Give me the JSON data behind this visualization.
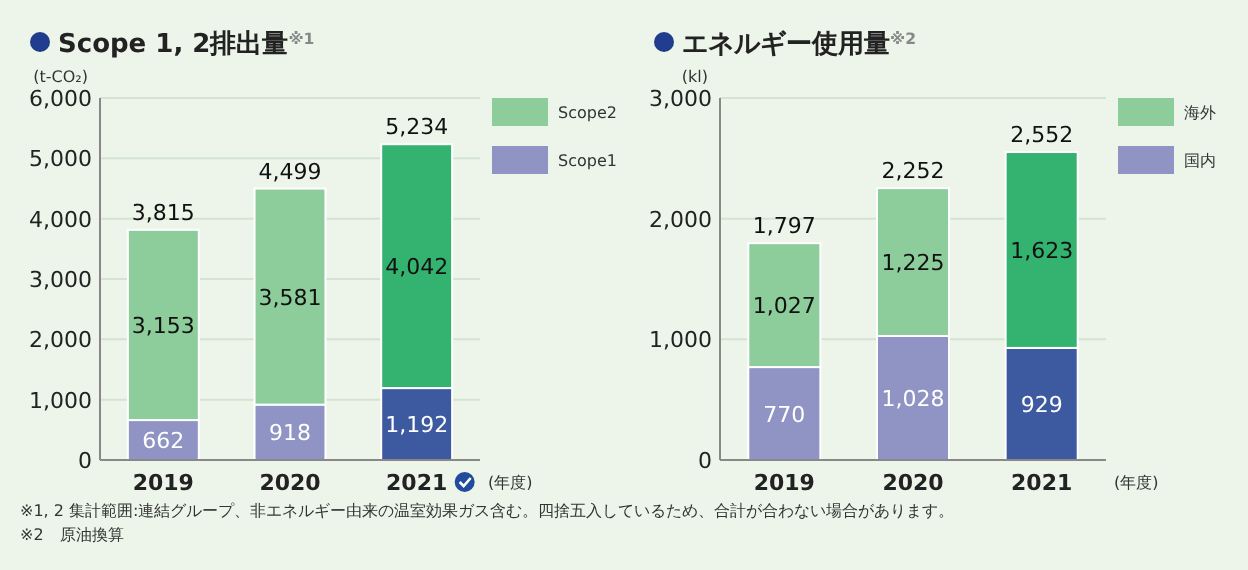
{
  "chart_data": [
    {
      "type": "bar",
      "title": "Scope 1, 2排出量$^{※1}$",
      "ylabel": "(t-CO₂)",
      "xlabel": "(年度)",
      "categories": [
        "2019",
        "2020",
        "2021"
      ],
      "stacked": true,
      "legend": "right",
      "grid": "y",
      "series": [
        {
          "name": "Scope1",
          "color": "#8f94c4",
          "colors": [
            "#8f94c4",
            "#8f94c4",
            "#3d5aa0"
          ],
          "values": [
            662,
            918,
            1192
          ],
          "value_labels": [
            "662",
            "918",
            "1,192"
          ]
        },
        {
          "name": "Scope2",
          "color": "#8dcc9b",
          "colors": [
            "#8dcc9b",
            "#8dcc9b",
            "#34b270"
          ],
          "values": [
            3153,
            3581,
            4042
          ],
          "value_labels": [
            "3,153",
            "3,581",
            "4,042"
          ]
        }
      ],
      "totals": [
        "3,815",
        "4,499",
        "5,234"
      ],
      "ylim": [
        0,
        6000
      ],
      "yticks": [
        0,
        {
          "value": 1000,
          "label": "1,000"
        },
        {
          "value": 2000,
          "label": "2,000"
        },
        {
          "value": 3000,
          "label": "3,000"
        },
        {
          "value": 4000,
          "label": "4,000"
        },
        {
          "value": 5000,
          "label": "5,000"
        },
        {
          "value": 6000,
          "label": "6,000"
        }
      ],
      "annotations": [
        "※1, 2 集計範囲:連結グループ、非エネルギー由来の温室効果ガス含む。四捨五入しているため、合計が合わない場合があります。",
        "※2　原油換算"
      ]
    },
    {
      "type": "bar",
      "title": "エネルギー使用量$^{※2}$",
      "ylabel": "(kl)",
      "xlabel": "(年度)",
      "categories": [
        "2019",
        "2020",
        "2021"
      ],
      "stacked": true,
      "legend": "right",
      "grid": "y",
      "series": [
        {
          "name": "国内",
          "color": "#8f94c4",
          "colors": [
            "#8f94c4",
            "#8f94c4",
            "#3d5aa0"
          ],
          "values": [
            770,
            1028,
            929
          ],
          "value_labels": [
            "770",
            "1,028",
            "929"
          ]
        },
        {
          "name": "海外",
          "color": "#8dcc9b",
          "colors": [
            "#8dcc9b",
            "#8dcc9b",
            "#34b270"
          ],
          "values": [
            1027,
            1225,
            1623
          ],
          "value_labels": [
            "1,027",
            "1,225",
            "1,623"
          ]
        }
      ],
      "totals": [
        "1,797",
        "2,252",
        "2,552"
      ],
      "ylim": [
        0,
        3000
      ],
      "yticks": [
        0,
        {
          "value": 1000,
          "label": "1,000"
        },
        {
          "value": 2000,
          "label": "2,000"
        },
        {
          "value": 3000,
          "label": "3,000"
        }
      ]
    }
  ]
}
